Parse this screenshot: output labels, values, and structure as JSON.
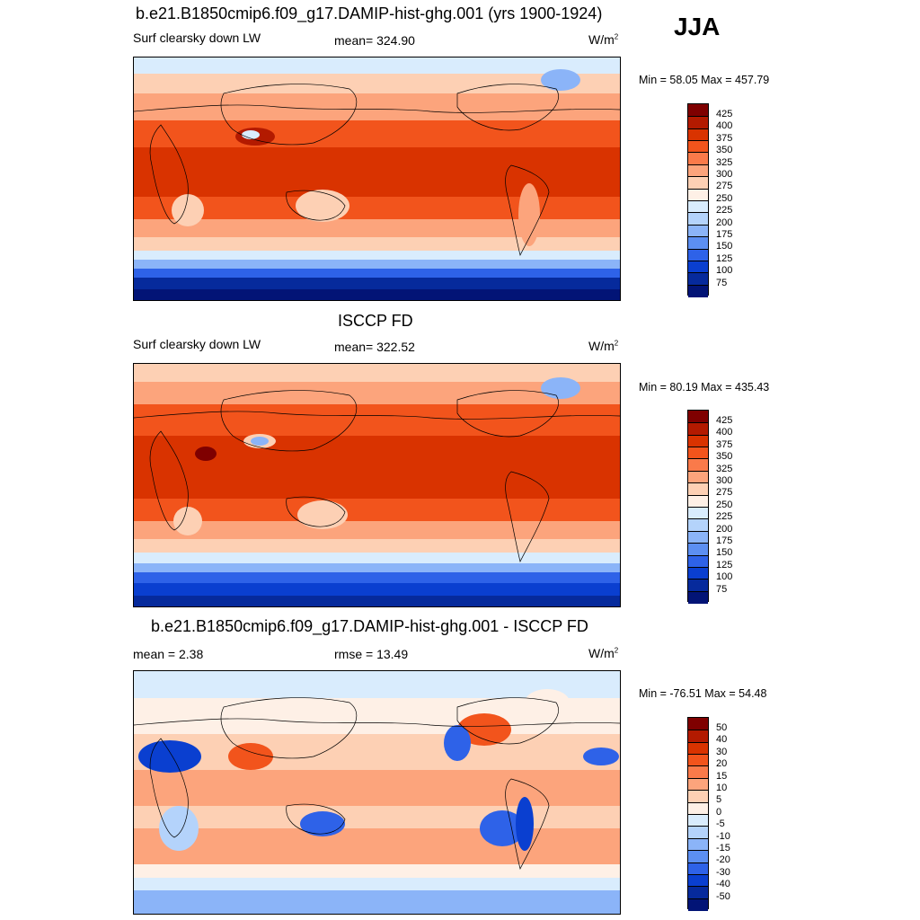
{
  "season": "JJA",
  "panels": [
    {
      "id": "model",
      "title": "b.e21.B1850cmip6.f09_g17.DAMIP-hist-ghg.001 (yrs 1900-1924)",
      "left_label": "Surf clearsky down LW",
      "center_label": "mean= 324.90",
      "units": "W/m",
      "units_sup": "2",
      "minmax": "Min =  58.05 Max = 457.79",
      "colorbar_labels": [
        "425",
        "400",
        "375",
        "350",
        "325",
        "300",
        "275",
        "250",
        "225",
        "200",
        "175",
        "150",
        "125",
        "100",
        "75"
      ]
    },
    {
      "id": "obs",
      "title": "ISCCP FD",
      "left_label": "Surf clearsky down LW",
      "center_label": "mean= 322.52",
      "units": "W/m",
      "units_sup": "2",
      "minmax": "Min =  80.19 Max = 435.43",
      "colorbar_labels": [
        "425",
        "400",
        "375",
        "350",
        "325",
        "300",
        "275",
        "250",
        "225",
        "200",
        "175",
        "150",
        "125",
        "100",
        "75"
      ]
    },
    {
      "id": "diff",
      "title": "b.e21.B1850cmip6.f09_g17.DAMIP-hist-ghg.001 - ISCCP FD",
      "left_label": "mean =   2.38",
      "center_label": "rmse =   13.49",
      "units": "W/m",
      "units_sup": "2",
      "minmax": "Min = -76.51 Max =  54.48",
      "colorbar_labels": [
        "50",
        "40",
        "30",
        "20",
        "15",
        "10",
        "5",
        "0",
        "-5",
        "-10",
        "-15",
        "-20",
        "-30",
        "-40",
        "-50"
      ]
    }
  ],
  "colors": {
    "scale": [
      "#7f0000",
      "#b31a00",
      "#d93300",
      "#f2541c",
      "#fa7a4a",
      "#fca47c",
      "#fdd0b4",
      "#fef0e6",
      "#d9ecfd",
      "#b4d3fb",
      "#8bb4f8",
      "#5c8ff2",
      "#2e62e8",
      "#0a3fd0",
      "#062a9c",
      "#021476"
    ]
  }
}
